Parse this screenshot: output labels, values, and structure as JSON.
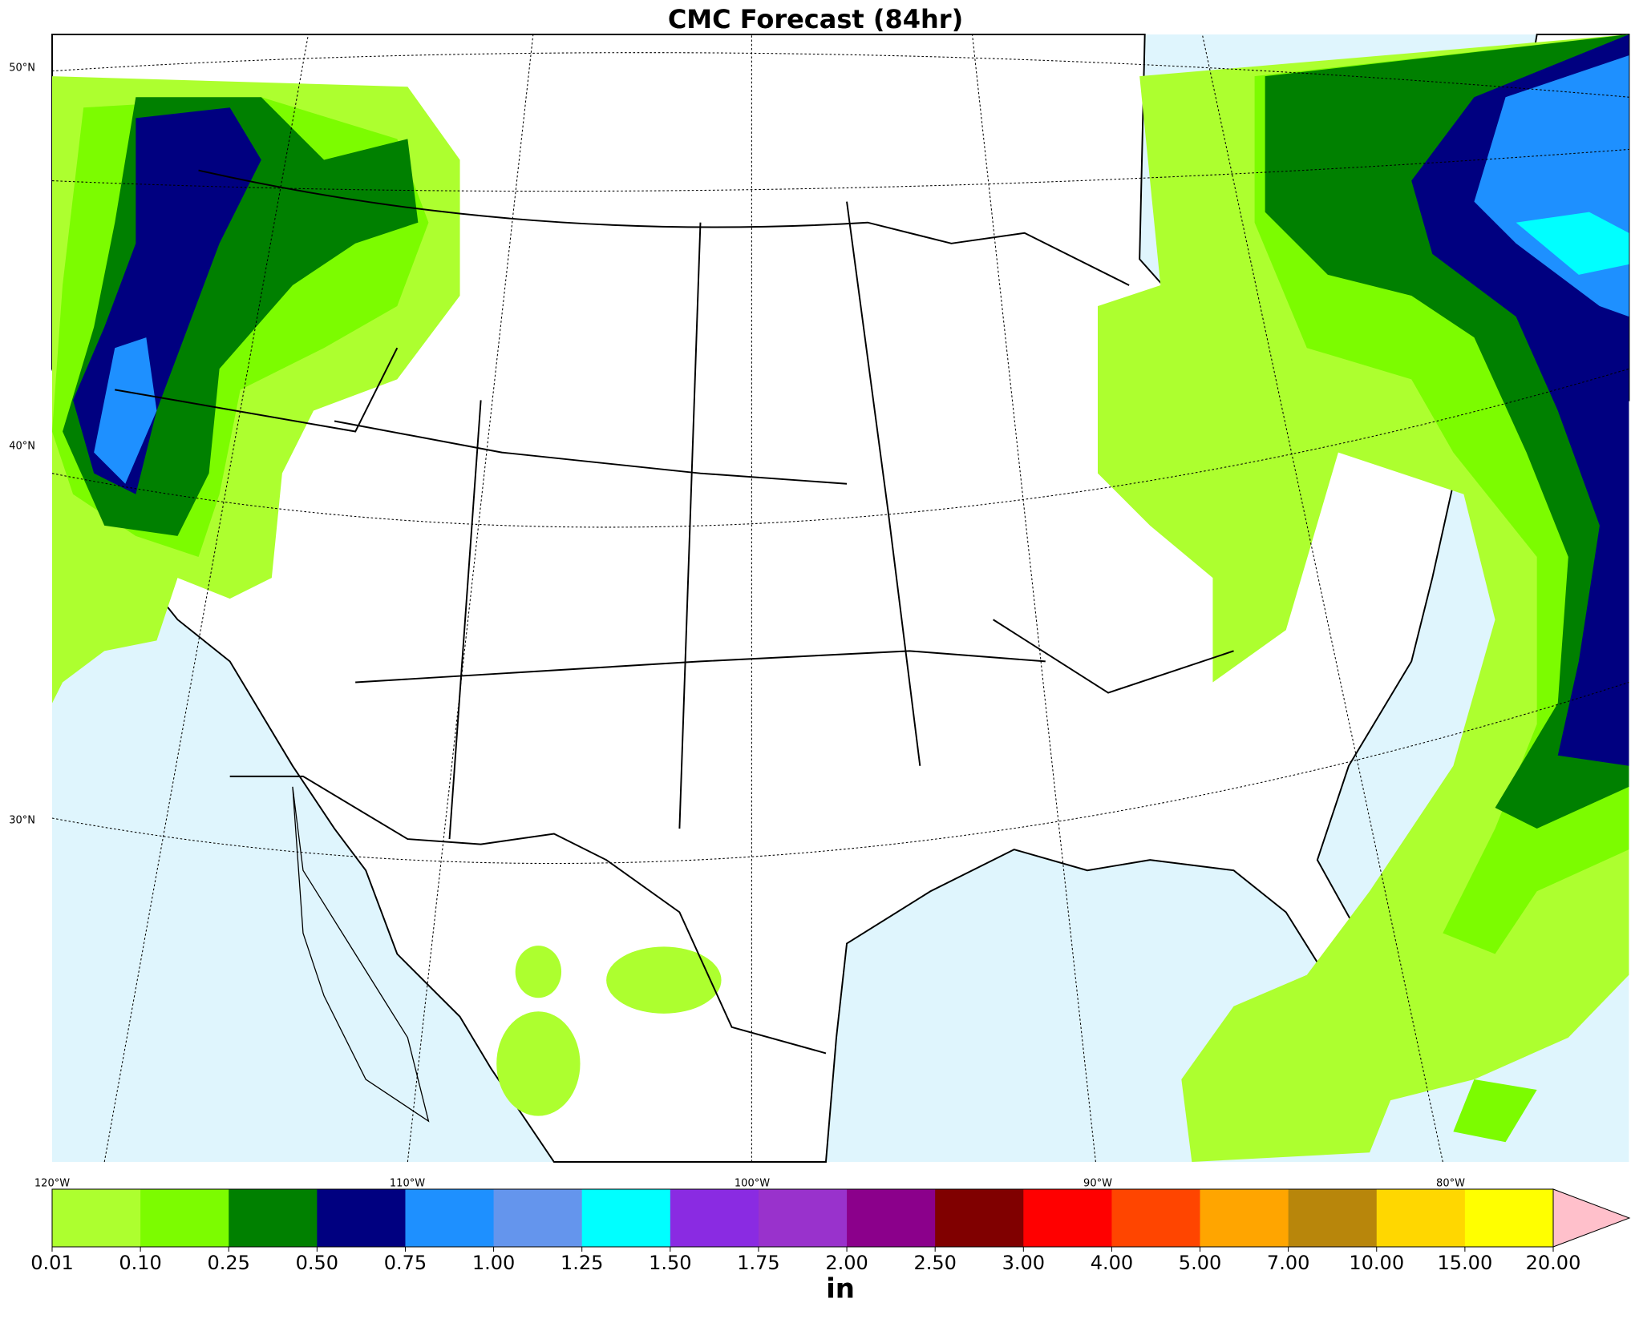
{
  "title": "CMC Forecast (84hr)",
  "map": {
    "lat_labels": [
      "50°N",
      "40°N",
      "30°N"
    ],
    "lon_labels": [
      "120°W",
      "110°W",
      "100°W",
      "90°W",
      "80°W"
    ]
  },
  "colorbar": {
    "label": "in",
    "levels": [
      0.01,
      {
        "value": 0.1,
        "label": "0.10"
      },
      0.25,
      {
        "value": 0.5,
        "label": "0.50"
      },
      0.75,
      {
        "value": 1,
        "label": "1.00"
      },
      1.25,
      {
        "value": 1.5,
        "label": "1.50"
      },
      1.75,
      {
        "value": 2,
        "label": "2.00"
      },
      {
        "value": 2.5,
        "label": "2.50"
      },
      {
        "value": 3,
        "label": "3.00"
      },
      {
        "value": 4,
        "label": "4.00"
      },
      {
        "value": 5,
        "label": "5.00"
      },
      {
        "value": 7,
        "label": "7.00"
      },
      {
        "value": 10,
        "label": "10.00"
      },
      {
        "value": 15,
        "label": "15.00"
      },
      {
        "value": 20,
        "label": "20.00"
      }
    ],
    "colors": [
      "#adff2f",
      "#7cfc00",
      "#008000",
      "#000080",
      "#1e90ff",
      "#6495ed",
      "#00ffff",
      "#8a2be2",
      "#9932cc",
      "#8b008b",
      "#800000",
      "#ff0000",
      "#ff4500",
      "#ffa500",
      "#b8860b",
      "#ffd700",
      "#ffff00"
    ],
    "extend_color": "#ffc0cb"
  }
}
